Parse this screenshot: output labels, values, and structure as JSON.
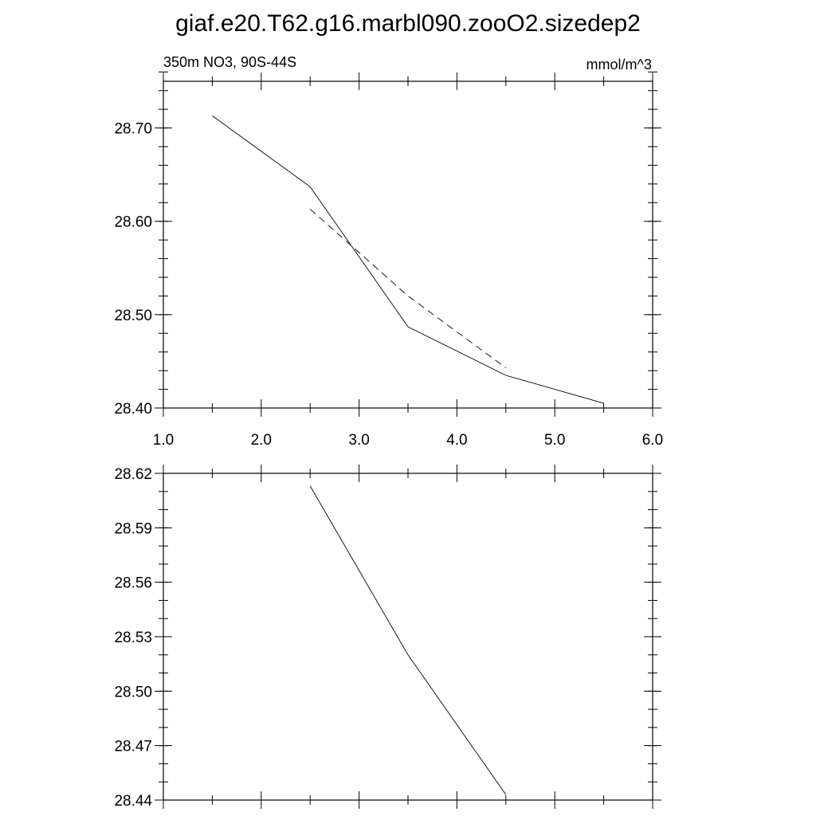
{
  "title": "giaf.e20.T62.g16.marbl090.zooO2.sizedep2",
  "chart_data": [
    {
      "type": "line",
      "subtitle_left": "350m NO3, 90S-44S",
      "subtitle_right": "mmol/m^3",
      "xlim": [
        1.0,
        6.0
      ],
      "ylim": [
        28.4,
        28.75
      ],
      "x_ticks": [
        "1.0",
        "2.0",
        "3.0",
        "4.0",
        "5.0",
        "6.0"
      ],
      "x_tick_values": [
        1.0,
        2.0,
        3.0,
        4.0,
        5.0,
        6.0
      ],
      "y_ticks": [
        "28.40",
        "28.50",
        "28.60",
        "28.70"
      ],
      "y_tick_values": [
        28.4,
        28.5,
        28.6,
        28.7
      ],
      "series": [
        {
          "style": "solid",
          "x": [
            1.5,
            2.5,
            3.5,
            4.5,
            5.5
          ],
          "y": [
            28.713,
            28.637,
            28.487,
            28.435,
            28.405
          ]
        },
        {
          "style": "dashed",
          "x": [
            2.5,
            3.5,
            4.5
          ],
          "y": [
            28.613,
            28.52,
            28.443
          ]
        }
      ]
    },
    {
      "type": "line",
      "xlim": [
        1.0,
        6.0
      ],
      "ylim": [
        28.44,
        28.62
      ],
      "y_ticks": [
        "28.62",
        "28.59",
        "28.56",
        "28.53",
        "28.50",
        "28.47",
        "28.44"
      ],
      "y_tick_values": [
        28.62,
        28.59,
        28.56,
        28.53,
        28.5,
        28.47,
        28.44
      ],
      "series": [
        {
          "style": "solid",
          "x": [
            2.5,
            3.5,
            4.5
          ],
          "y": [
            28.613,
            28.52,
            28.443
          ]
        }
      ]
    }
  ]
}
